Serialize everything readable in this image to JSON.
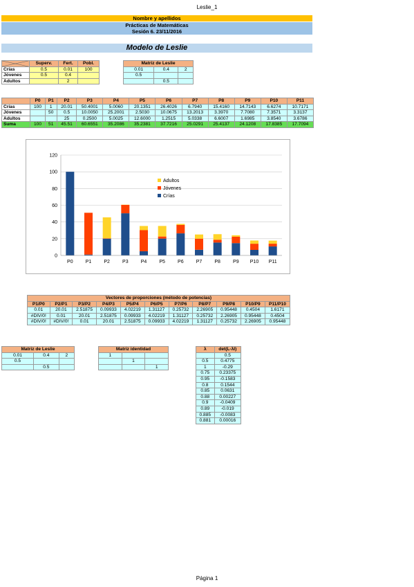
{
  "page": {
    "header": "Leslie_1",
    "footer": "Página 1"
  },
  "titles": {
    "name": "Nombre y apellidos",
    "course": "Prácticas de Matemáticas",
    "session": "Sesión 6. 23/11/2016",
    "model": "Modelo de Leslie"
  },
  "params": {
    "headers": [
      "Superv.",
      "Fert.",
      "Pobl."
    ],
    "rows": [
      {
        "label": "Crías",
        "superv": "0.5",
        "fert": "0.01",
        "pobl": "100"
      },
      {
        "label": "Jóvenes",
        "superv": "0.5",
        "fert": "0.4",
        "pobl": ""
      },
      {
        "label": "Adultos",
        "superv": "",
        "fert": "2",
        "pobl": ""
      }
    ]
  },
  "leslie_top": {
    "title": "Matriz de Leslie",
    "rows": [
      [
        "0.01",
        "0.4",
        "2"
      ],
      [
        "0.5",
        "",
        ""
      ],
      [
        "",
        "0.5",
        ""
      ]
    ]
  },
  "population": {
    "headers": [
      "P0",
      "P1",
      "P2",
      "P3",
      "P4",
      "P5",
      "P6",
      "P7",
      "P8",
      "P9",
      "P10",
      "P11"
    ],
    "rows": [
      {
        "label": "Crías",
        "values": [
          "100",
          "1",
          "20.01",
          "50.4001",
          "5.0060",
          "20.1351",
          "26.4026",
          "6.7940",
          "15.4160",
          "14.7143",
          "6.6274",
          "10.7171"
        ]
      },
      {
        "label": "Jóvenes",
        "values": [
          "",
          "50",
          "0.5",
          "10.0050",
          "25.2001",
          "2.5030",
          "10.0675",
          "13.2013",
          "3.3970",
          "7.7080",
          "7.3571",
          "3.3137"
        ]
      },
      {
        "label": "Adultos",
        "values": [
          "",
          "",
          "25",
          "0.2500",
          "5.0025",
          "12.6000",
          "1.2515",
          "5.0338",
          "6.6007",
          "1.6985",
          "3.8540",
          "3.6786"
        ]
      },
      {
        "label": "Suma",
        "values": [
          "100",
          "51",
          "45.51",
          "60.6551",
          "35.2086",
          "35.2381",
          "37.7216",
          "25.0291",
          "25.4137",
          "24.1208",
          "17.8385",
          "17.7094"
        ]
      }
    ]
  },
  "chart_data": {
    "type": "bar",
    "stacked": true,
    "categories": [
      "P0",
      "P1",
      "P2",
      "P3",
      "P4",
      "P5",
      "P6",
      "P7",
      "P8",
      "P9",
      "P10",
      "P11"
    ],
    "series": [
      {
        "name": "Crías",
        "color": "#1f4e8c",
        "values": [
          100,
          1,
          20.01,
          50.4001,
          5.006,
          20.1351,
          26.4026,
          6.794,
          15.416,
          14.7143,
          6.6274,
          10.7171
        ]
      },
      {
        "name": "Jóvenes",
        "color": "#ff4000",
        "values": [
          0,
          50,
          0.5,
          10.005,
          25.2001,
          2.503,
          10.0675,
          13.2013,
          3.397,
          7.708,
          7.3571,
          3.3137
        ]
      },
      {
        "name": "Adultos",
        "color": "#ffd42a",
        "values": [
          0,
          0,
          25,
          0.25,
          5.0025,
          12.6,
          1.2515,
          5.0338,
          6.6007,
          1.6985,
          3.854,
          3.6786
        ]
      }
    ],
    "yticks": [
      "0",
      "20",
      "40",
      "60",
      "80",
      "100",
      "120"
    ],
    "ylim": [
      0,
      120
    ],
    "grid": true,
    "legend": "top-center",
    "legend_order": [
      "Adultos",
      "Jóvenes",
      "Crías"
    ]
  },
  "ratios": {
    "title": "Vectores de proporciones (método de potencias)",
    "headers": [
      "P1/P0",
      "P2/P1",
      "P3/P2",
      "P4/P3",
      "P5/P4",
      "P6/P5",
      "P7/P6",
      "P8/P7",
      "P9/P8",
      "P10/P9",
      "P11/P10"
    ],
    "rows": [
      [
        "0.01",
        "20.01",
        "2.51875",
        "0.09933",
        "4.02219",
        "1.31127",
        "0.25732",
        "2.26905",
        "0.95448",
        "0.4504",
        "1.6171"
      ],
      [
        "#DIV/0!",
        "0.01",
        "20.01",
        "2.51875",
        "0.09933",
        "4.02219",
        "1.31127",
        "0.25732",
        "2.26905",
        "0.95448",
        "0.4504"
      ],
      [
        "#DIV/0!",
        "#DIV/0!",
        "0.01",
        "20.01",
        "2.51875",
        "0.09933",
        "4.02219",
        "1.31127",
        "0.25732",
        "2.26905",
        "0.95448"
      ]
    ]
  },
  "leslie_bottom": {
    "title": "Matriz de Leslie",
    "rows": [
      [
        "0.01",
        "0.4",
        "2"
      ],
      [
        "0.5",
        "",
        ""
      ],
      [
        "",
        "0.5",
        ""
      ]
    ]
  },
  "identity": {
    "title": "Matriz identidad",
    "rows": [
      [
        "1",
        "",
        ""
      ],
      [
        "",
        "1",
        ""
      ],
      [
        "",
        "",
        "1"
      ]
    ]
  },
  "det": {
    "headers": [
      "λ",
      "det(L-λI)"
    ],
    "rows": [
      [
        "",
        "0.5"
      ],
      [
        "0.5",
        "0.4775"
      ],
      [
        "1",
        "-0.29"
      ],
      [
        "0.75",
        "0.23375"
      ],
      [
        "0.95",
        "-0.1583"
      ],
      [
        "0.8",
        "0.1544"
      ],
      [
        "0.85",
        "0.0631"
      ],
      [
        "0.88",
        "0.00227"
      ],
      [
        "0.9",
        "-0.0409"
      ],
      [
        "0.89",
        "-0.019"
      ],
      [
        "0.885",
        "-0.0083"
      ],
      [
        "0.881",
        "0.00016"
      ]
    ]
  }
}
